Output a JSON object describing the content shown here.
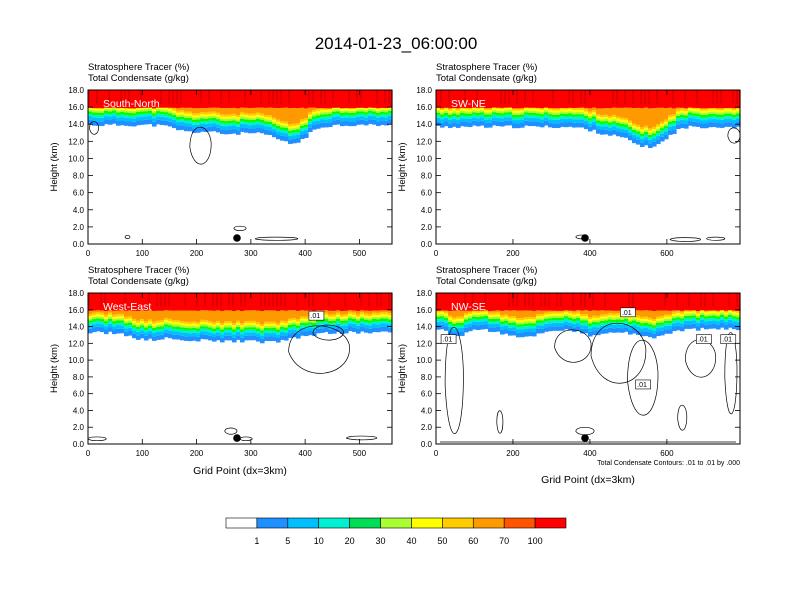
{
  "title": "2014-01-23_06:00:00",
  "colors": {
    "levels": [
      "#ffffff",
      "#1e90ff",
      "#00bfff",
      "#00f0d0",
      "#00dd55",
      "#00ff00",
      "#aaff33",
      "#ffff00",
      "#ffcc00",
      "#ff9900",
      "#ff5500",
      "#ff0000"
    ],
    "lineColor": "#000000"
  },
  "colorbar": {
    "labels": [
      "1",
      "5",
      "10",
      "20",
      "30",
      "40",
      "50",
      "60",
      "70",
      "100"
    ]
  },
  "chart_data": [
    {
      "type": "heatmap",
      "subtitle1": "Stratosphere Tracer   (%)",
      "subtitle2": "Total Condensate   (g/kg)",
      "label": "South-North",
      "xlabel": "",
      "ylabel": "Height (km)",
      "xlim": [
        0,
        560
      ],
      "ylim": [
        0,
        18
      ],
      "xticks": [
        "0",
        "100",
        "200",
        "300",
        "400",
        "500"
      ],
      "yticks": [
        "0.0",
        "2.0",
        "4.0",
        "6.0",
        "8.0",
        "10.0",
        "12.0",
        "14.0",
        "16.0",
        "18.0"
      ],
      "footnote": "",
      "contour_labels": []
    },
    {
      "type": "heatmap",
      "subtitle1": "Stratosphere Tracer   (%)",
      "subtitle2": "Total Condensate   (g/kg)",
      "label": "SW-NE",
      "xlabel": "",
      "ylabel": "Height (km)",
      "xlim": [
        0,
        790
      ],
      "ylim": [
        0,
        18
      ],
      "xticks": [
        "0",
        "200",
        "400",
        "600"
      ],
      "yticks": [
        "0.0",
        "2.0",
        "4.0",
        "6.0",
        "8.0",
        "10.0",
        "12.0",
        "14.0",
        "16.0",
        "18.0"
      ],
      "footnote": "",
      "contour_labels": []
    },
    {
      "type": "heatmap",
      "subtitle1": "Stratosphere Tracer   (%)",
      "subtitle2": "Total Condensate   (g/kg)",
      "label": "West-East",
      "xlabel": "Grid Point (dx=3km)",
      "ylabel": "Height (km)",
      "xlim": [
        0,
        560
      ],
      "ylim": [
        0,
        18
      ],
      "xticks": [
        "0",
        "100",
        "200",
        "300",
        "400",
        "500"
      ],
      "yticks": [
        "0.0",
        "2.0",
        "4.0",
        "6.0",
        "8.0",
        "10.0",
        "12.0",
        "14.0",
        "16.0",
        "18.0"
      ],
      "footnote": "",
      "contour_labels": [
        ".01"
      ]
    },
    {
      "type": "heatmap",
      "subtitle1": "Stratosphere Tracer   (%)",
      "subtitle2": "Total Condensate   (g/kg)",
      "label": "NW-SE",
      "xlabel": "Grid Point (dx=3km)",
      "ylabel": "Height (km)",
      "xlim": [
        0,
        790
      ],
      "ylim": [
        0,
        18
      ],
      "xticks": [
        "0",
        "200",
        "400",
        "600"
      ],
      "yticks": [
        "0.0",
        "2.0",
        "4.0",
        "6.0",
        "8.0",
        "10.0",
        "12.0",
        "14.0",
        "16.0",
        "18.0"
      ],
      "footnote": "Total Condensate Contours: .01 to .01 by .000",
      "contour_labels": [
        ".01",
        ".01",
        ".01",
        ".01",
        ".01"
      ]
    }
  ]
}
